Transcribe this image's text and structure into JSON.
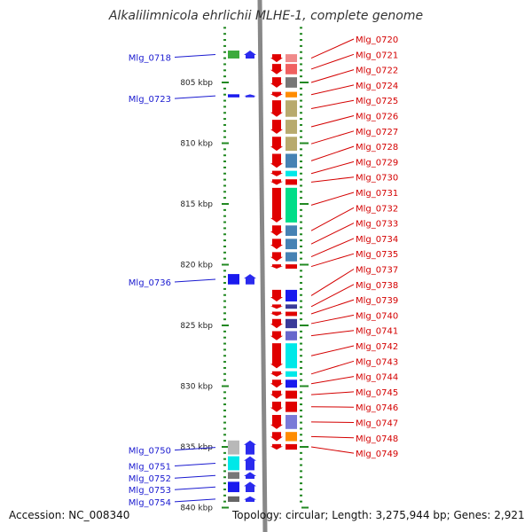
{
  "title": "Alkalilimnicola ehrlichii MLHE-1, complete genome",
  "footer": {
    "accession": "Accession: NC_008340",
    "topology": "Topology: circular; Length: 3,275,944 bp; Genes: 2,921"
  },
  "colors": {
    "forward_strand_marker": "#2a2aee",
    "reverse_strand_marker": "#e00000",
    "left_label": "#1a1ad0",
    "right_label": "#d40000",
    "tick": "#228822",
    "backbone": "#888888"
  },
  "scale": {
    "first_kbp": 799,
    "last_kbp": 840,
    "label_every_kbp": 5,
    "label_suffix": " kbp",
    "labeled_ticks": [
      "805 kbp",
      "810 kbp",
      "815 kbp",
      "820 kbp",
      "825 kbp",
      "830 kbp",
      "835 kbp",
      "840 kbp"
    ]
  },
  "genes_left": [
    {
      "label": "Mlg_0718",
      "kbp": 802.3,
      "len": 0.8,
      "strand": "+",
      "color": "#3caa3c"
    },
    {
      "label": "Mlg_0723",
      "kbp": 805.9,
      "len": 0.4,
      "strand": "+",
      "color": "#1a1aee"
    },
    {
      "label": "Mlg_0736",
      "kbp": 820.7,
      "len": 1.0,
      "strand": "+",
      "color": "#1a1aee"
    },
    {
      "label": "Mlg_0750",
      "kbp": 834.4,
      "len": 1.3,
      "strand": "+",
      "color": "#b8b8b8"
    },
    {
      "label": "Mlg_0751",
      "kbp": 835.7,
      "len": 1.3,
      "strand": "+",
      "color": "#00e8e8"
    },
    {
      "label": "Mlg_0752",
      "kbp": 837.0,
      "len": 0.7,
      "strand": "+",
      "color": "#777777"
    },
    {
      "label": "Mlg_0753",
      "kbp": 837.8,
      "len": 1.0,
      "strand": "+",
      "color": "#1a1aee"
    },
    {
      "label": "Mlg_0754",
      "kbp": 839.0,
      "len": 0.6,
      "strand": "+",
      "color": "#666666"
    }
  ],
  "genes_right": [
    {
      "label": "Mlg_0720",
      "kbp": 802.6,
      "len": 0.8,
      "strand": "-",
      "color": "#f08a8a"
    },
    {
      "label": "Mlg_0721",
      "kbp": 803.4,
      "len": 1.0,
      "strand": "-",
      "color": "#f06060"
    },
    {
      "label": "Mlg_0722",
      "kbp": 804.5,
      "len": 1.0,
      "strand": "-",
      "color": "#777777"
    },
    {
      "label": "Mlg_0724",
      "kbp": 805.7,
      "len": 0.6,
      "strand": "-",
      "color": "#ff8c00"
    },
    {
      "label": "Mlg_0725",
      "kbp": 806.4,
      "len": 1.5,
      "strand": "-",
      "color": "#b8aa6e"
    },
    {
      "label": "Mlg_0726",
      "kbp": 808.0,
      "len": 1.3,
      "strand": "-",
      "color": "#b8aa6e"
    },
    {
      "label": "Mlg_0727",
      "kbp": 809.4,
      "len": 1.3,
      "strand": "-",
      "color": "#b8aa6e"
    },
    {
      "label": "Mlg_0728",
      "kbp": 810.8,
      "len": 1.3,
      "strand": "-",
      "color": "#4682b4"
    },
    {
      "label": "Mlg_0729",
      "kbp": 812.2,
      "len": 0.6,
      "strand": "-",
      "color": "#00e8e8"
    },
    {
      "label": "Mlg_0730",
      "kbp": 812.9,
      "len": 0.6,
      "strand": "-",
      "color": "#e00000"
    },
    {
      "label": "Mlg_0731",
      "kbp": 813.6,
      "len": 3.0,
      "strand": "-",
      "color": "#00dd88"
    },
    {
      "label": "Mlg_0732",
      "kbp": 816.7,
      "len": 1.0,
      "strand": "-",
      "color": "#4682b4"
    },
    {
      "label": "Mlg_0733",
      "kbp": 817.8,
      "len": 1.0,
      "strand": "-",
      "color": "#4682b4"
    },
    {
      "label": "Mlg_0734",
      "kbp": 818.9,
      "len": 0.9,
      "strand": "-",
      "color": "#4682b4"
    },
    {
      "label": "Mlg_0735",
      "kbp": 819.9,
      "len": 0.5,
      "strand": "-",
      "color": "#e00000"
    },
    {
      "label": "Mlg_0737",
      "kbp": 822.0,
      "len": 1.1,
      "strand": "-",
      "color": "#1a1aee"
    },
    {
      "label": "Mlg_0738",
      "kbp": 823.2,
      "len": 0.5,
      "strand": "-",
      "color": "#3a3a99"
    },
    {
      "label": "Mlg_0739",
      "kbp": 823.8,
      "len": 0.5,
      "strand": "-",
      "color": "#e00000"
    },
    {
      "label": "Mlg_0740",
      "kbp": 824.4,
      "len": 0.9,
      "strand": "-",
      "color": "#3a3a99"
    },
    {
      "label": "Mlg_0741",
      "kbp": 825.4,
      "len": 0.9,
      "strand": "-",
      "color": "#6666cc"
    },
    {
      "label": "Mlg_0742",
      "kbp": 826.4,
      "len": 2.2,
      "strand": "-",
      "color": "#00e8e8"
    },
    {
      "label": "Mlg_0743",
      "kbp": 828.7,
      "len": 0.6,
      "strand": "-",
      "color": "#00e8e8"
    },
    {
      "label": "Mlg_0744",
      "kbp": 829.4,
      "len": 0.8,
      "strand": "-",
      "color": "#1a1aee"
    },
    {
      "label": "Mlg_0745",
      "kbp": 830.3,
      "len": 0.8,
      "strand": "-",
      "color": "#e00000"
    },
    {
      "label": "Mlg_0746",
      "kbp": 831.2,
      "len": 1.0,
      "strand": "-",
      "color": "#e00000"
    },
    {
      "label": "Mlg_0747",
      "kbp": 832.3,
      "len": 1.3,
      "strand": "-",
      "color": "#7a7ad8"
    },
    {
      "label": "Mlg_0748",
      "kbp": 833.7,
      "len": 0.9,
      "strand": "-",
      "color": "#ff8c00"
    },
    {
      "label": "Mlg_0749",
      "kbp": 834.7,
      "len": 0.6,
      "strand": "-",
      "color": "#e00000"
    }
  ]
}
